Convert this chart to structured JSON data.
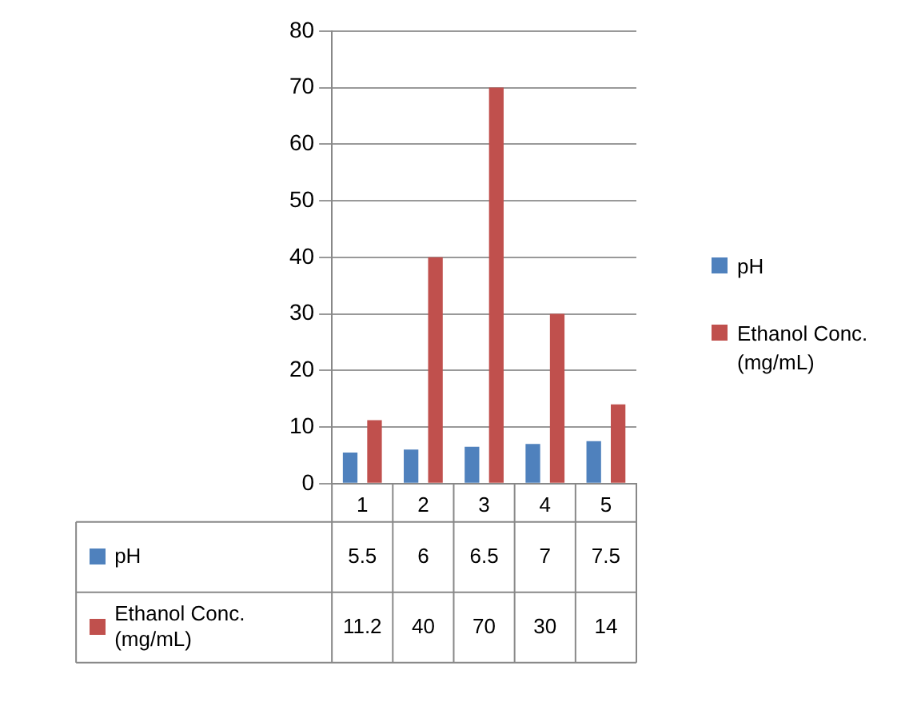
{
  "chart_data": {
    "type": "bar",
    "categories": [
      "1",
      "2",
      "3",
      "4",
      "5"
    ],
    "series": [
      {
        "name": "pH",
        "color": "#4f81bd",
        "values": [
          5.5,
          6,
          6.5,
          7,
          7.5
        ]
      },
      {
        "name": "Ethanol Conc. (mg/mL)",
        "color": "#c0504d",
        "values": [
          11.2,
          40,
          70,
          30,
          14
        ]
      }
    ],
    "ylim": [
      0,
      80
    ],
    "yticks": [
      0,
      10,
      20,
      30,
      40,
      50,
      60,
      70,
      80
    ],
    "grid": "y",
    "legend": "right",
    "data_labels": true
  }
}
